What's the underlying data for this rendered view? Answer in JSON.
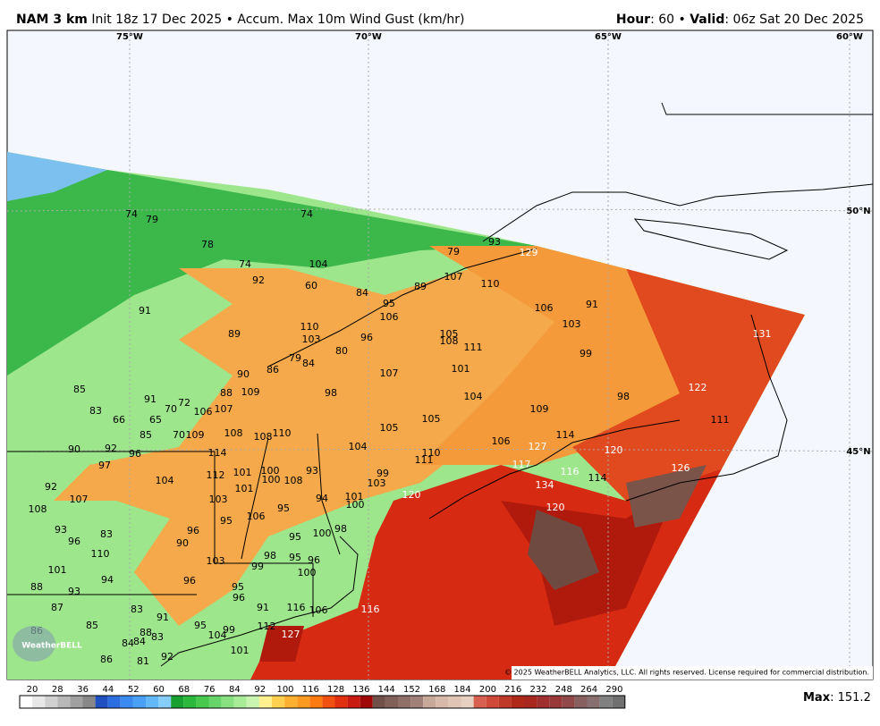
{
  "header": {
    "model": "NAM 3 km",
    "init": "Init 18z 17 Dec 2025",
    "separator": "•",
    "field": "Accum. Max 10m Wind Gust (km/hr)",
    "hour_label": "Hour",
    "hour_text": ": 60",
    "valid_label": "Valid",
    "valid_text": ": 06z Sat 20 Dec 2025"
  },
  "map": {
    "lon_labels": [
      "75°W",
      "70°W",
      "65°W",
      "60°W"
    ],
    "lat_labels": [
      "50°N",
      "45°N"
    ],
    "values": [
      "74",
      "79",
      "78",
      "74",
      "104",
      "74",
      "92",
      "60",
      "84",
      "79",
      "93",
      "129",
      "107",
      "110",
      "89",
      "95",
      "106",
      "106",
      "91",
      "103",
      "91",
      "89",
      "110",
      "103",
      "96",
      "105",
      "108",
      "111",
      "80",
      "79",
      "84",
      "86",
      "90",
      "107",
      "101",
      "99",
      "131",
      "85",
      "91",
      "72",
      "83",
      "88",
      "109",
      "98",
      "104",
      "98",
      "122",
      "66",
      "65",
      "70",
      "106",
      "107",
      "105",
      "109",
      "105",
      "85",
      "70",
      "109",
      "108",
      "108",
      "110",
      "111",
      "90",
      "92",
      "96",
      "104",
      "106",
      "127",
      "114",
      "120",
      "97",
      "114",
      "110",
      "111",
      "117",
      "126",
      "104",
      "112",
      "101",
      "100",
      "93",
      "99",
      "100",
      "108",
      "103",
      "116",
      "114",
      "92",
      "107",
      "101",
      "134",
      "103",
      "94",
      "101",
      "100",
      "120",
      "120",
      "108",
      "95",
      "106",
      "95",
      "93",
      "83",
      "96",
      "100",
      "98",
      "95",
      "96",
      "90",
      "110",
      "103",
      "98",
      "95",
      "99",
      "96",
      "100",
      "101",
      "94",
      "96",
      "88",
      "93",
      "95",
      "96",
      "83",
      "87",
      "91",
      "91",
      "116",
      "106",
      "116",
      "85",
      "95",
      "99",
      "86",
      "104",
      "88",
      "83",
      "112",
      "127",
      "101",
      "84",
      "84",
      "86",
      "81",
      "92"
    ],
    "copyright": "© 2025 WeatherBELL Analytics, LLC. All rights reserved. License required for commercial distribution.",
    "logo": "WeatherBELL"
  },
  "colorbar": {
    "ticks": [
      "20",
      "28",
      "36",
      "44",
      "52",
      "60",
      "68",
      "76",
      "84",
      "92",
      "100",
      "116",
      "128",
      "136",
      "144",
      "152",
      "168",
      "184",
      "200",
      "216",
      "232",
      "248",
      "264",
      "290"
    ]
  },
  "max": {
    "label": "Max",
    "value": ": 151.2"
  }
}
